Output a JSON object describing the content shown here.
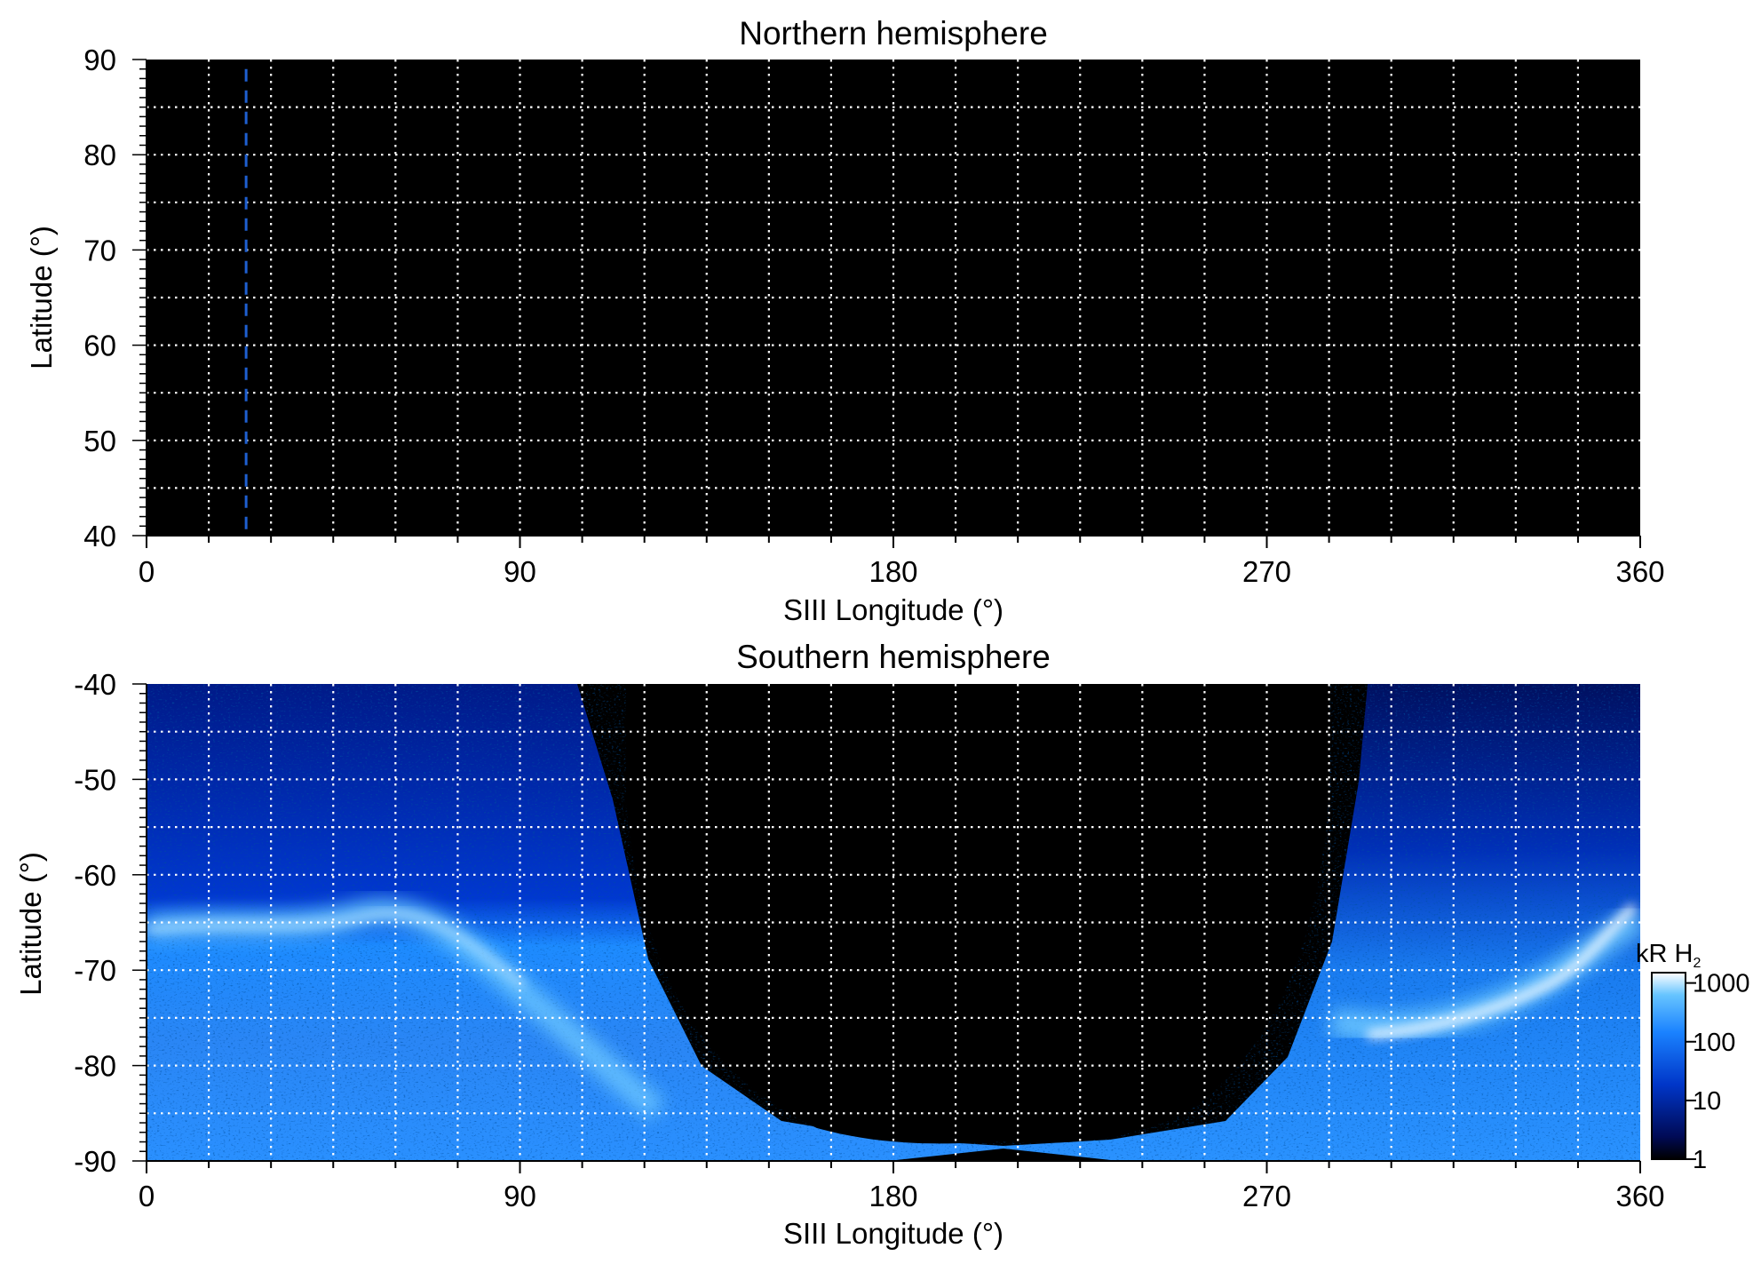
{
  "chart_data": [
    {
      "type": "heatmap",
      "title": "Northern hemisphere",
      "xlabel": "SIII Longitude (°)",
      "ylabel": "Latitude (°)",
      "xlim": [
        0,
        360
      ],
      "ylim": [
        40,
        90
      ],
      "x_ticks": [
        "0",
        "90",
        "180",
        "270",
        "360"
      ],
      "y_ticks": [
        "40",
        "50",
        "60",
        "70",
        "80",
        "90"
      ],
      "grid": true,
      "grid_style": "white dotted, every 15° longitude and 5° latitude",
      "background": "#000000",
      "annotations": [
        {
          "type": "vertical dashed line",
          "x": 24,
          "y_range": [
            40,
            89
          ],
          "color": "#1e5fd0"
        }
      ]
    },
    {
      "type": "heatmap",
      "title": "Southern hemisphere",
      "xlabel": "SIII Longitude (°)",
      "ylabel": "Latitude (°)",
      "xlim": [
        0,
        360
      ],
      "ylim": [
        -90,
        -40
      ],
      "x_ticks": [
        "0",
        "90",
        "180",
        "270",
        "360"
      ],
      "y_ticks": [
        "-40",
        "-50",
        "-60",
        "-70",
        "-80",
        "-90"
      ],
      "grid": true,
      "grid_style": "white dotted, every 15° longitude and 5° latitude",
      "colorscale": "log",
      "colorbar": {
        "label": "kR H",
        "label_subscript": "2",
        "ticks": [
          "1000",
          "100",
          "10",
          "1"
        ],
        "range": [
          1,
          1500
        ],
        "colors": [
          "#000000",
          "#000a55",
          "#0036c8",
          "#1a82ff",
          "#66c4ff",
          "#ffffff"
        ]
      },
      "features": [
        {
          "name": "auroral oval (bright emission)",
          "lon": [
            0,
            360
          ],
          "lat": [
            -78,
            -62
          ],
          "peak_kR": 1500
        },
        {
          "name": "no-data region",
          "lon": [
            118,
            290
          ],
          "lat": [
            -90,
            -40
          ]
        },
        {
          "name": "polar emission",
          "lon": [
            0,
            120
          ],
          "lat": [
            -90,
            -65
          ],
          "level_kR": 100
        },
        {
          "name": "polar emission",
          "lon": [
            290,
            360
          ],
          "lat": [
            -90,
            -55
          ],
          "level_kR": 100
        }
      ]
    }
  ]
}
